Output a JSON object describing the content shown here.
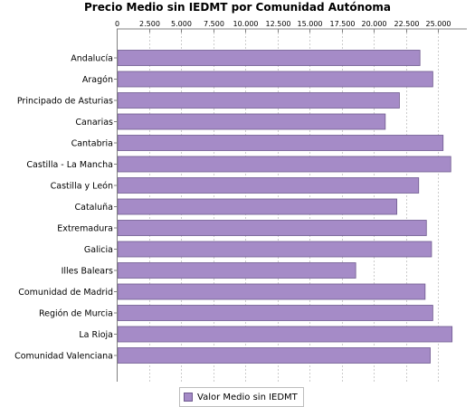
{
  "chart_data": {
    "type": "bar",
    "orientation": "horizontal",
    "title": "Precio Medio sin IEDMT por Comunidad Autónoma",
    "xlabel": "",
    "ylabel": "",
    "xlim": [
      0,
      27250
    ],
    "x_ticks": [
      0,
      2500,
      5000,
      7500,
      10000,
      12500,
      15000,
      17500,
      20000,
      22500,
      25000
    ],
    "x_tick_labels": [
      "0",
      "2.500",
      "5.000",
      "7.500",
      "10.000",
      "12.500",
      "15.000",
      "17.500",
      "20.000",
      "22.500",
      "25.000"
    ],
    "x_axis_position": "top",
    "grid": "vertical dashed",
    "legend_position": "bottom",
    "bar_color": "#a58bc7",
    "bar_border_color": "#6f5a8f",
    "categories": [
      "Andalucía",
      "Aragón",
      "Principado de Asturias",
      "Canarias",
      "Cantabria",
      "Castilla - La Mancha",
      "Castilla y León",
      "Cataluña",
      "Extremadura",
      "Galicia",
      "Illes Balears",
      "Comunidad de Madrid",
      "Región de Murcia",
      "La Rioja",
      "Comunidad Valenciana"
    ],
    "series": [
      {
        "name": "Valor Medio sin IEDMT",
        "values": [
          23600,
          24600,
          22000,
          20900,
          25400,
          26000,
          23500,
          21800,
          24100,
          24500,
          18600,
          24000,
          24600,
          26100,
          24400
        ]
      }
    ]
  }
}
